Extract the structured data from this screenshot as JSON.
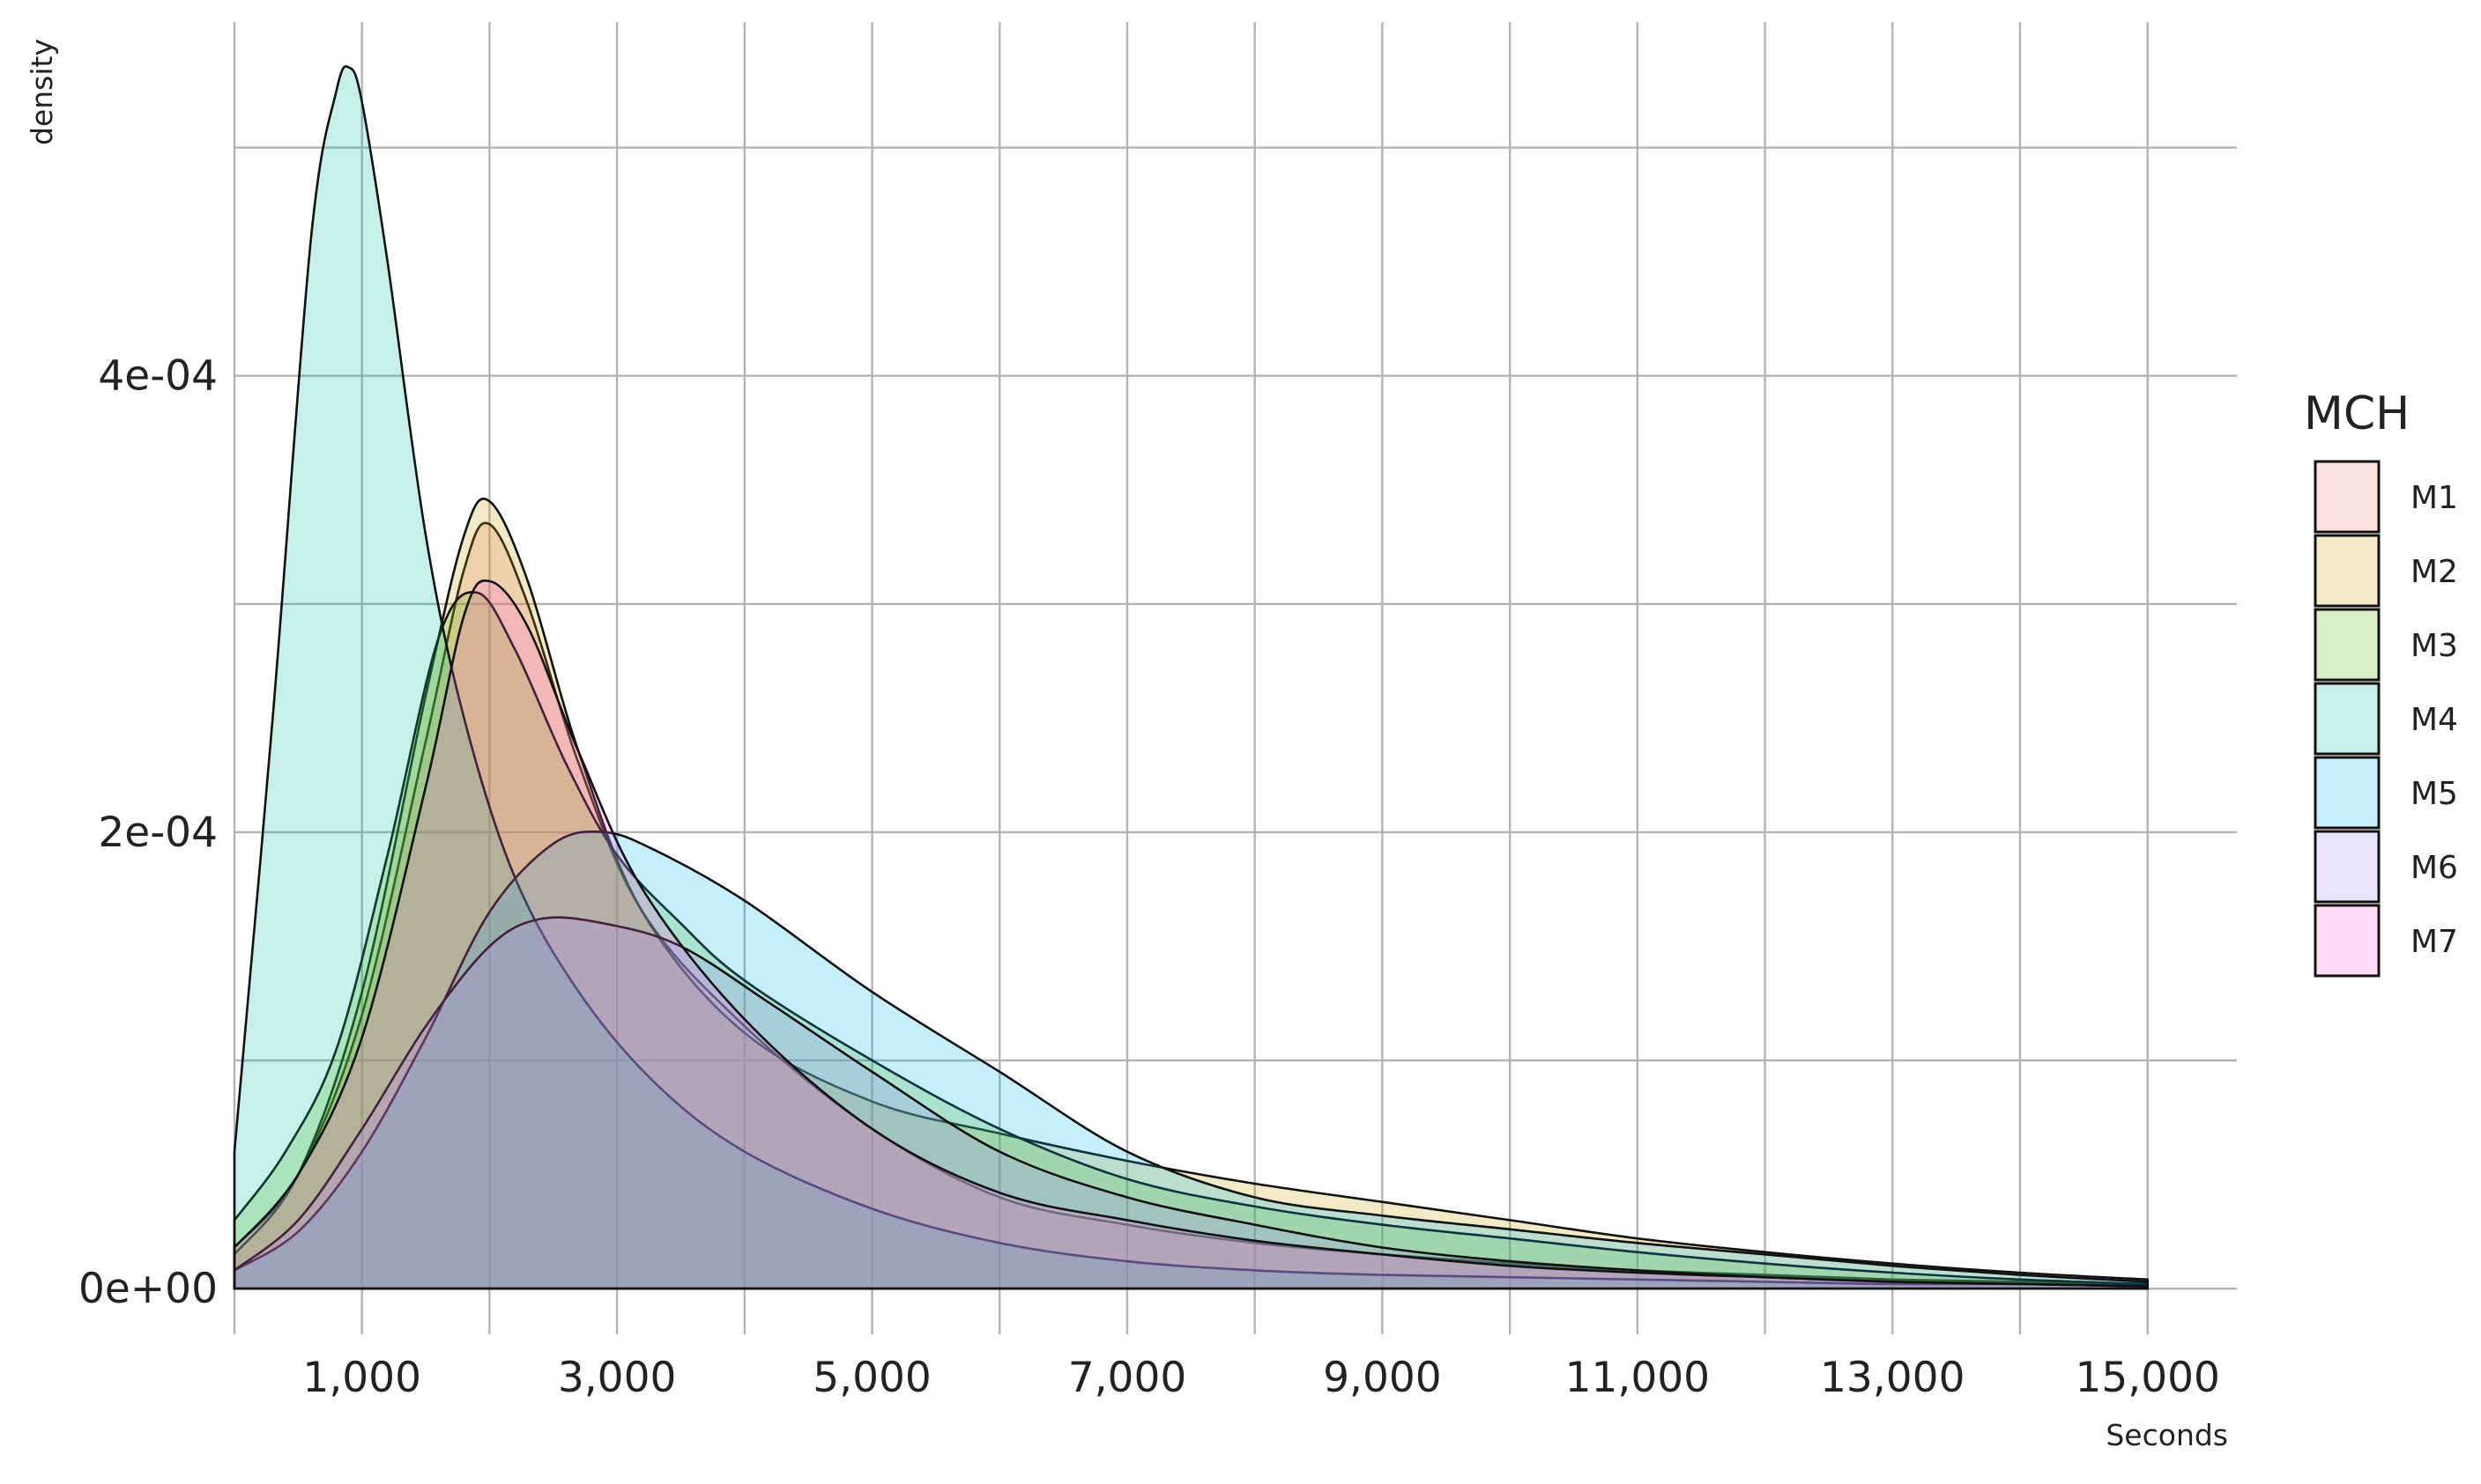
{
  "chart_data": {
    "type": "area",
    "xlabel": "Seconds",
    "ylabel": "density",
    "xlim": [
      0,
      15700
    ],
    "ylim": [
      -2e-05,
      0.000555
    ],
    "x_ticks": [
      1000,
      3000,
      5000,
      7000,
      9000,
      11000,
      13000,
      15000
    ],
    "x_tick_labels": [
      "1,000",
      "3,000",
      "5,000",
      "7,000",
      "9,000",
      "11,000",
      "13,000",
      "15,000"
    ],
    "x_minor_grid": [
      0,
      2000,
      4000,
      6000,
      8000,
      10000,
      12000,
      14000
    ],
    "y_ticks": [
      0,
      0.0002,
      0.0004
    ],
    "y_tick_labels": [
      "0e+00",
      "2e-04",
      "4e-04"
    ],
    "y_minor_grid": [
      0.0001,
      0.0003,
      0.0005
    ],
    "grid": true,
    "legend": {
      "title": "MCH",
      "position": "right"
    },
    "series": [
      {
        "name": "M1",
        "color": "#F8766D",
        "x": [
          0,
          500,
          1000,
          1500,
          1800,
          2000,
          2300,
          2700,
          3200,
          4000,
          5000,
          6000,
          7000,
          8000,
          9000,
          10000,
          11000,
          12000,
          13000,
          14000,
          15000
        ],
        "y": [
          1.8e-05,
          5e-05,
          0.00012,
          0.00024,
          0.000315,
          0.000335,
          0.0003,
          0.00023,
          0.000165,
          0.000115,
          7e-05,
          4e-05,
          2.8e-05,
          2e-05,
          1.5e-05,
          1.1e-05,
          8e-06,
          6e-06,
          4e-06,
          3e-06,
          2e-06
        ]
      },
      {
        "name": "M2",
        "color": "#C49A00",
        "x": [
          0,
          500,
          1000,
          1500,
          1800,
          2000,
          2300,
          2700,
          3200,
          4000,
          5000,
          6000,
          7000,
          8000,
          9000,
          10000,
          11000,
          12000,
          13000,
          14000,
          15000
        ],
        "y": [
          1.5e-05,
          5e-05,
          0.00013,
          0.00026,
          0.00033,
          0.000345,
          0.00031,
          0.000235,
          0.000165,
          0.000112,
          8.2e-05,
          6.8e-05,
          5.6e-05,
          4.6e-05,
          3.8e-05,
          3e-05,
          2.2e-05,
          1.6e-05,
          1.1e-05,
          7e-06,
          4e-06
        ]
      },
      {
        "name": "M3",
        "color": "#53B400",
        "x": [
          0,
          400,
          800,
          1200,
          1600,
          1900,
          2200,
          2600,
          3000,
          3500,
          4000,
          5000,
          6000,
          7000,
          8000,
          9000,
          10000,
          11000,
          12000,
          13000,
          14000,
          15000
        ],
        "y": [
          3e-05,
          6e-05,
          0.000105,
          0.00019,
          0.000285,
          0.000305,
          0.00028,
          0.00023,
          0.00019,
          0.00016,
          0.000135,
          0.0001,
          7e-05,
          4.8e-05,
          3.6e-05,
          2.8e-05,
          2.2e-05,
          1.6e-05,
          1.1e-05,
          7e-06,
          4e-06,
          2e-06
        ]
      },
      {
        "name": "M4",
        "color": "#00C094",
        "x": [
          0,
          300,
          600,
          800,
          900,
          1000,
          1200,
          1500,
          1800,
          2200,
          2700,
          3300,
          4000,
          5000,
          6000,
          7000,
          8000,
          9000,
          10000,
          11000,
          12000,
          13000,
          14000,
          15000
        ],
        "y": [
          6e-05,
          0.00025,
          0.00046,
          0.000525,
          0.000535,
          0.00052,
          0.00045,
          0.00033,
          0.00025,
          0.00018,
          0.00013,
          9e-05,
          6e-05,
          3.5e-05,
          2e-05,
          1.2e-05,
          8e-06,
          6e-06,
          5e-06,
          4e-06,
          3e-06,
          2e-06,
          2e-06,
          1e-06
        ]
      },
      {
        "name": "M5",
        "color": "#00B6EB",
        "x": [
          0,
          500,
          1000,
          1500,
          2000,
          2500,
          2900,
          3300,
          4000,
          5000,
          6000,
          7000,
          8000,
          9000,
          10000,
          11000,
          12000,
          13000,
          14000,
          15000
        ],
        "y": [
          8e-06,
          2.5e-05,
          6e-05,
          0.00011,
          0.000165,
          0.000195,
          0.0002,
          0.000192,
          0.00017,
          0.00013,
          9.5e-05,
          6e-05,
          4e-05,
          3.2e-05,
          2.6e-05,
          2e-05,
          1.5e-05,
          1e-05,
          6e-06,
          3e-06
        ]
      },
      {
        "name": "M6",
        "color": "#A58AFF",
        "x": [
          0,
          500,
          1000,
          1500,
          2000,
          2400,
          2900,
          3500,
          4200,
          5000,
          6000,
          7000,
          8000,
          9000,
          10000,
          11000,
          12000,
          13000,
          14000,
          15000
        ],
        "y": [
          8e-06,
          3e-05,
          7e-05,
          0.000115,
          0.00015,
          0.000162,
          0.00016,
          0.00015,
          0.000125,
          9.5e-05,
          6e-05,
          4e-05,
          2.8e-05,
          1.8e-05,
          1.2e-05,
          8e-06,
          5e-06,
          3e-06,
          2e-06,
          1e-06
        ]
      },
      {
        "name": "M7",
        "color": "#FB61D7",
        "x": [
          0,
          500,
          1000,
          1500,
          1800,
          2000,
          2300,
          2700,
          3200,
          4000,
          5000,
          6000,
          7000,
          8000,
          9000,
          10000,
          11000,
          12000,
          13000,
          14000,
          15000
        ],
        "y": [
          1.8e-05,
          5e-05,
          0.00011,
          0.00022,
          0.000295,
          0.00031,
          0.00029,
          0.000235,
          0.000175,
          0.000118,
          7e-05,
          4.2e-05,
          3e-05,
          2.1e-05,
          1.5e-05,
          1e-05,
          7e-06,
          5e-06,
          3e-06,
          2e-06,
          1e-06
        ]
      }
    ]
  }
}
